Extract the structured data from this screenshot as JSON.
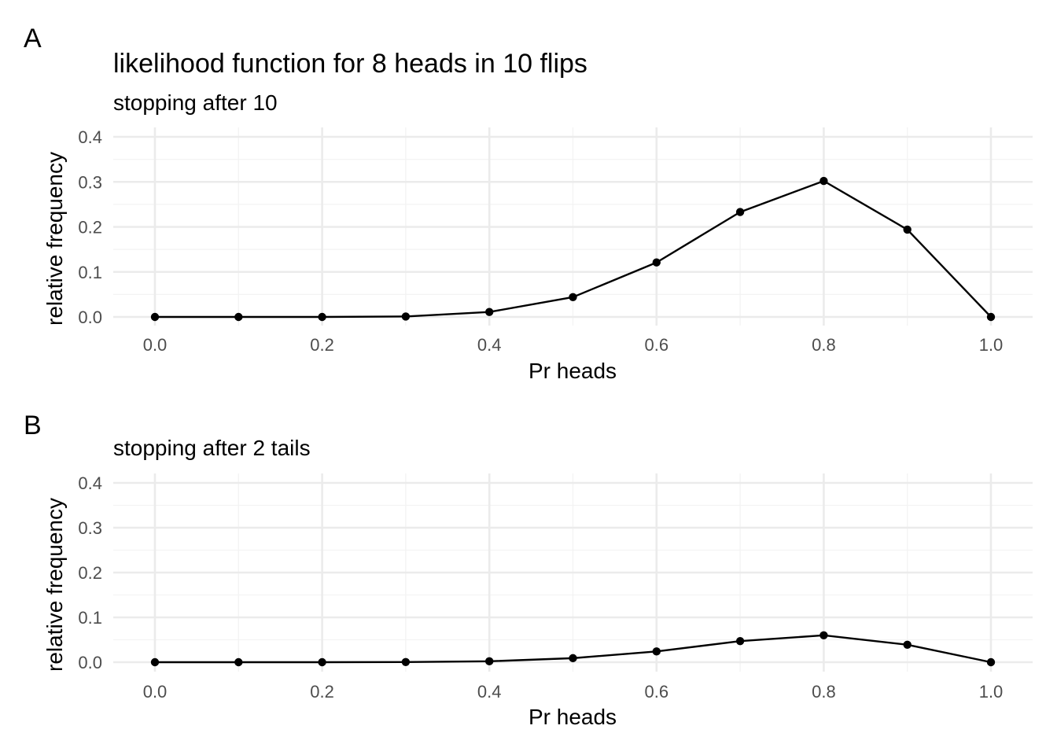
{
  "chart_data": [
    {
      "tag": "A",
      "type": "line",
      "title": "likelihood function for 8 heads in 10 flips",
      "subtitle": "stopping after 10",
      "xlabel": "Pr heads",
      "ylabel": "relative frequency",
      "xlim": [
        0,
        1
      ],
      "ylim": [
        0,
        0.4
      ],
      "x_ticks": [
        "0.0",
        "0.2",
        "0.4",
        "0.6",
        "0.8",
        "1.0"
      ],
      "y_ticks": [
        "0.0",
        "0.1",
        "0.2",
        "0.3",
        "0.4"
      ],
      "grid": true,
      "x": [
        0.0,
        0.1,
        0.2,
        0.3,
        0.4,
        0.5,
        0.6,
        0.7,
        0.8,
        0.9,
        1.0
      ],
      "values": [
        0.0,
        0.0,
        0.0,
        0.001,
        0.011,
        0.044,
        0.121,
        0.233,
        0.302,
        0.194,
        0.0
      ]
    },
    {
      "tag": "B",
      "type": "line",
      "title": "",
      "subtitle": "stopping after 2 tails",
      "xlabel": "Pr heads",
      "ylabel": "relative frequency",
      "xlim": [
        0,
        1
      ],
      "ylim": [
        0,
        0.4
      ],
      "x_ticks": [
        "0.0",
        "0.2",
        "0.4",
        "0.6",
        "0.8",
        "1.0"
      ],
      "y_ticks": [
        "0.0",
        "0.1",
        "0.2",
        "0.3",
        "0.4"
      ],
      "grid": true,
      "x": [
        0.0,
        0.1,
        0.2,
        0.3,
        0.4,
        0.5,
        0.6,
        0.7,
        0.8,
        0.9,
        1.0
      ],
      "values": [
        0.0,
        0.0,
        0.0,
        0.0004,
        0.002,
        0.009,
        0.024,
        0.047,
        0.06,
        0.039,
        0.0
      ]
    }
  ],
  "colors": {
    "grid_major": "#ebebeb",
    "grid_minor": "#f3f3f3",
    "line": "#000000",
    "tick_text": "#4d4d4d"
  }
}
